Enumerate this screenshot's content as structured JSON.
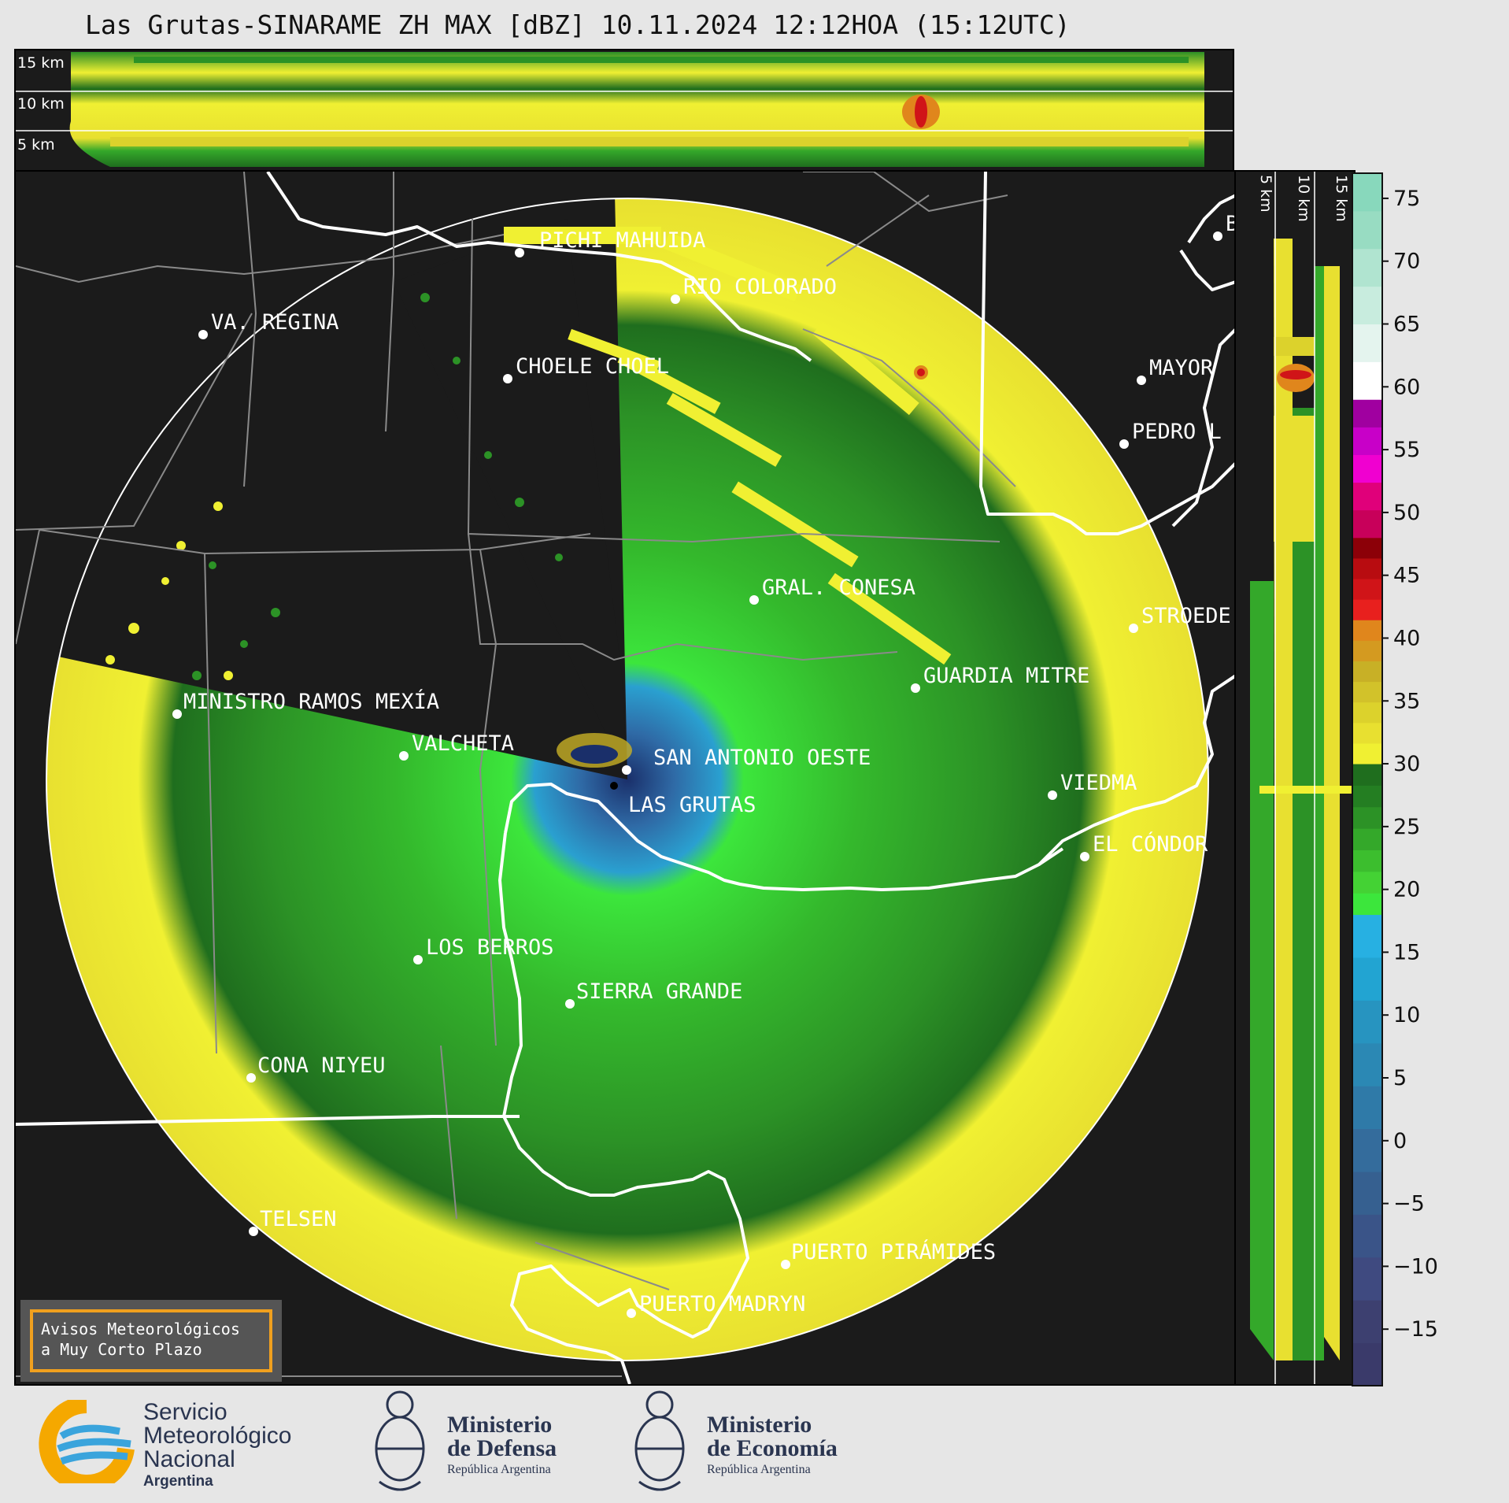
{
  "header": {
    "title": "Las Grutas-SINARAME ZH MAX [dBZ] 10.11.2024 12:12HOA (15:12UTC)"
  },
  "top_profile": {
    "altitude_labels": [
      "15 km",
      "10 km",
      "5 km"
    ]
  },
  "side_profile": {
    "altitude_labels": [
      "5 km",
      "10 km",
      "15 km"
    ]
  },
  "colorbar": {
    "ticks": [
      "75",
      "70",
      "65",
      "60",
      "55",
      "50",
      "45",
      "40",
      "35",
      "30",
      "25",
      "20",
      "15",
      "10",
      "5",
      "0",
      "−5",
      "−10",
      "−15"
    ],
    "bands": [
      [
        "#3a3a6a",
        "#3d4070",
        "#3f4a80",
        "#3a5488",
        "#366090",
        "#346c9c",
        "#2f7aa8",
        "#2b88b4",
        "#2794c0",
        "#22a4d2",
        "#27b0e2"
      ],
      [
        "#3ce63c",
        "#44d234",
        "#3cbe2e",
        "#34a82a",
        "#2c9226",
        "#247e22",
        "#1f6e1e"
      ],
      [
        "#f0f032",
        "#e8e030",
        "#dcd22c",
        "#d2c22a",
        "#c8b026",
        "#d49a20",
        "#e0861c",
        "#e8201e",
        "#d01418",
        "#b80c10",
        "#8c0008"
      ],
      [
        "#c8005a",
        "#e0007a",
        "#f000d0",
        "#c800c8",
        "#a000a0"
      ],
      [
        "#ffffff",
        "#e4f4ee",
        "#c8ecde",
        "#b0e4d0",
        "#98dcc2",
        "#88d8bc"
      ]
    ]
  },
  "map": {
    "localities": [
      {
        "name": "PICHI MAHUIDA"
      },
      {
        "name": "RIO COLORADO"
      },
      {
        "name": "VA. REGINA"
      },
      {
        "name": "CHOELE CHOEL"
      },
      {
        "name": "MAYOR"
      },
      {
        "name": "PEDRO L"
      },
      {
        "name": "B"
      },
      {
        "name": "GRAL. CONESA"
      },
      {
        "name": "STROEDE"
      },
      {
        "name": "GUARDIA MITRE"
      },
      {
        "name": "MINISTRO RAMOS MEXÍA"
      },
      {
        "name": "VALCHETA"
      },
      {
        "name": "SAN ANTONIO OESTE"
      },
      {
        "name": "LAS GRUTAS"
      },
      {
        "name": "VIEDMA"
      },
      {
        "name": "EL CÓNDOR"
      },
      {
        "name": "LOS BERROS"
      },
      {
        "name": "SIERRA GRANDE"
      },
      {
        "name": "CONA NIYEU"
      },
      {
        "name": "TELSEN"
      },
      {
        "name": "PUERTO PIRÁMIDES"
      },
      {
        "name": "PUERTO MADRYN"
      }
    ]
  },
  "alert": {
    "line1": "Avisos Meteorológicos",
    "line2": "a Muy Corto Plazo"
  },
  "footer": {
    "smn_line1": "Servicio",
    "smn_line2": "Meteorológico",
    "smn_line3": "Nacional",
    "smn_line4": "Argentina",
    "defensa_line1": "Ministerio",
    "defensa_line2": "de Defensa",
    "defensa_line3": "República Argentina",
    "economia_line1": "Ministerio",
    "economia_line2": "de Economía",
    "economia_line3": "República Argentina"
  },
  "colors": {
    "background": "#e6e6e6",
    "panel": "#1b1b1b",
    "echo_low": "#f0f032",
    "echo_green_dark": "#1f6e1e",
    "echo_green_mid": "#34a82a",
    "echo_green_light": "#3ce63c",
    "echo_blue": "#2b88b4",
    "alert_border": "#f0a01e"
  }
}
